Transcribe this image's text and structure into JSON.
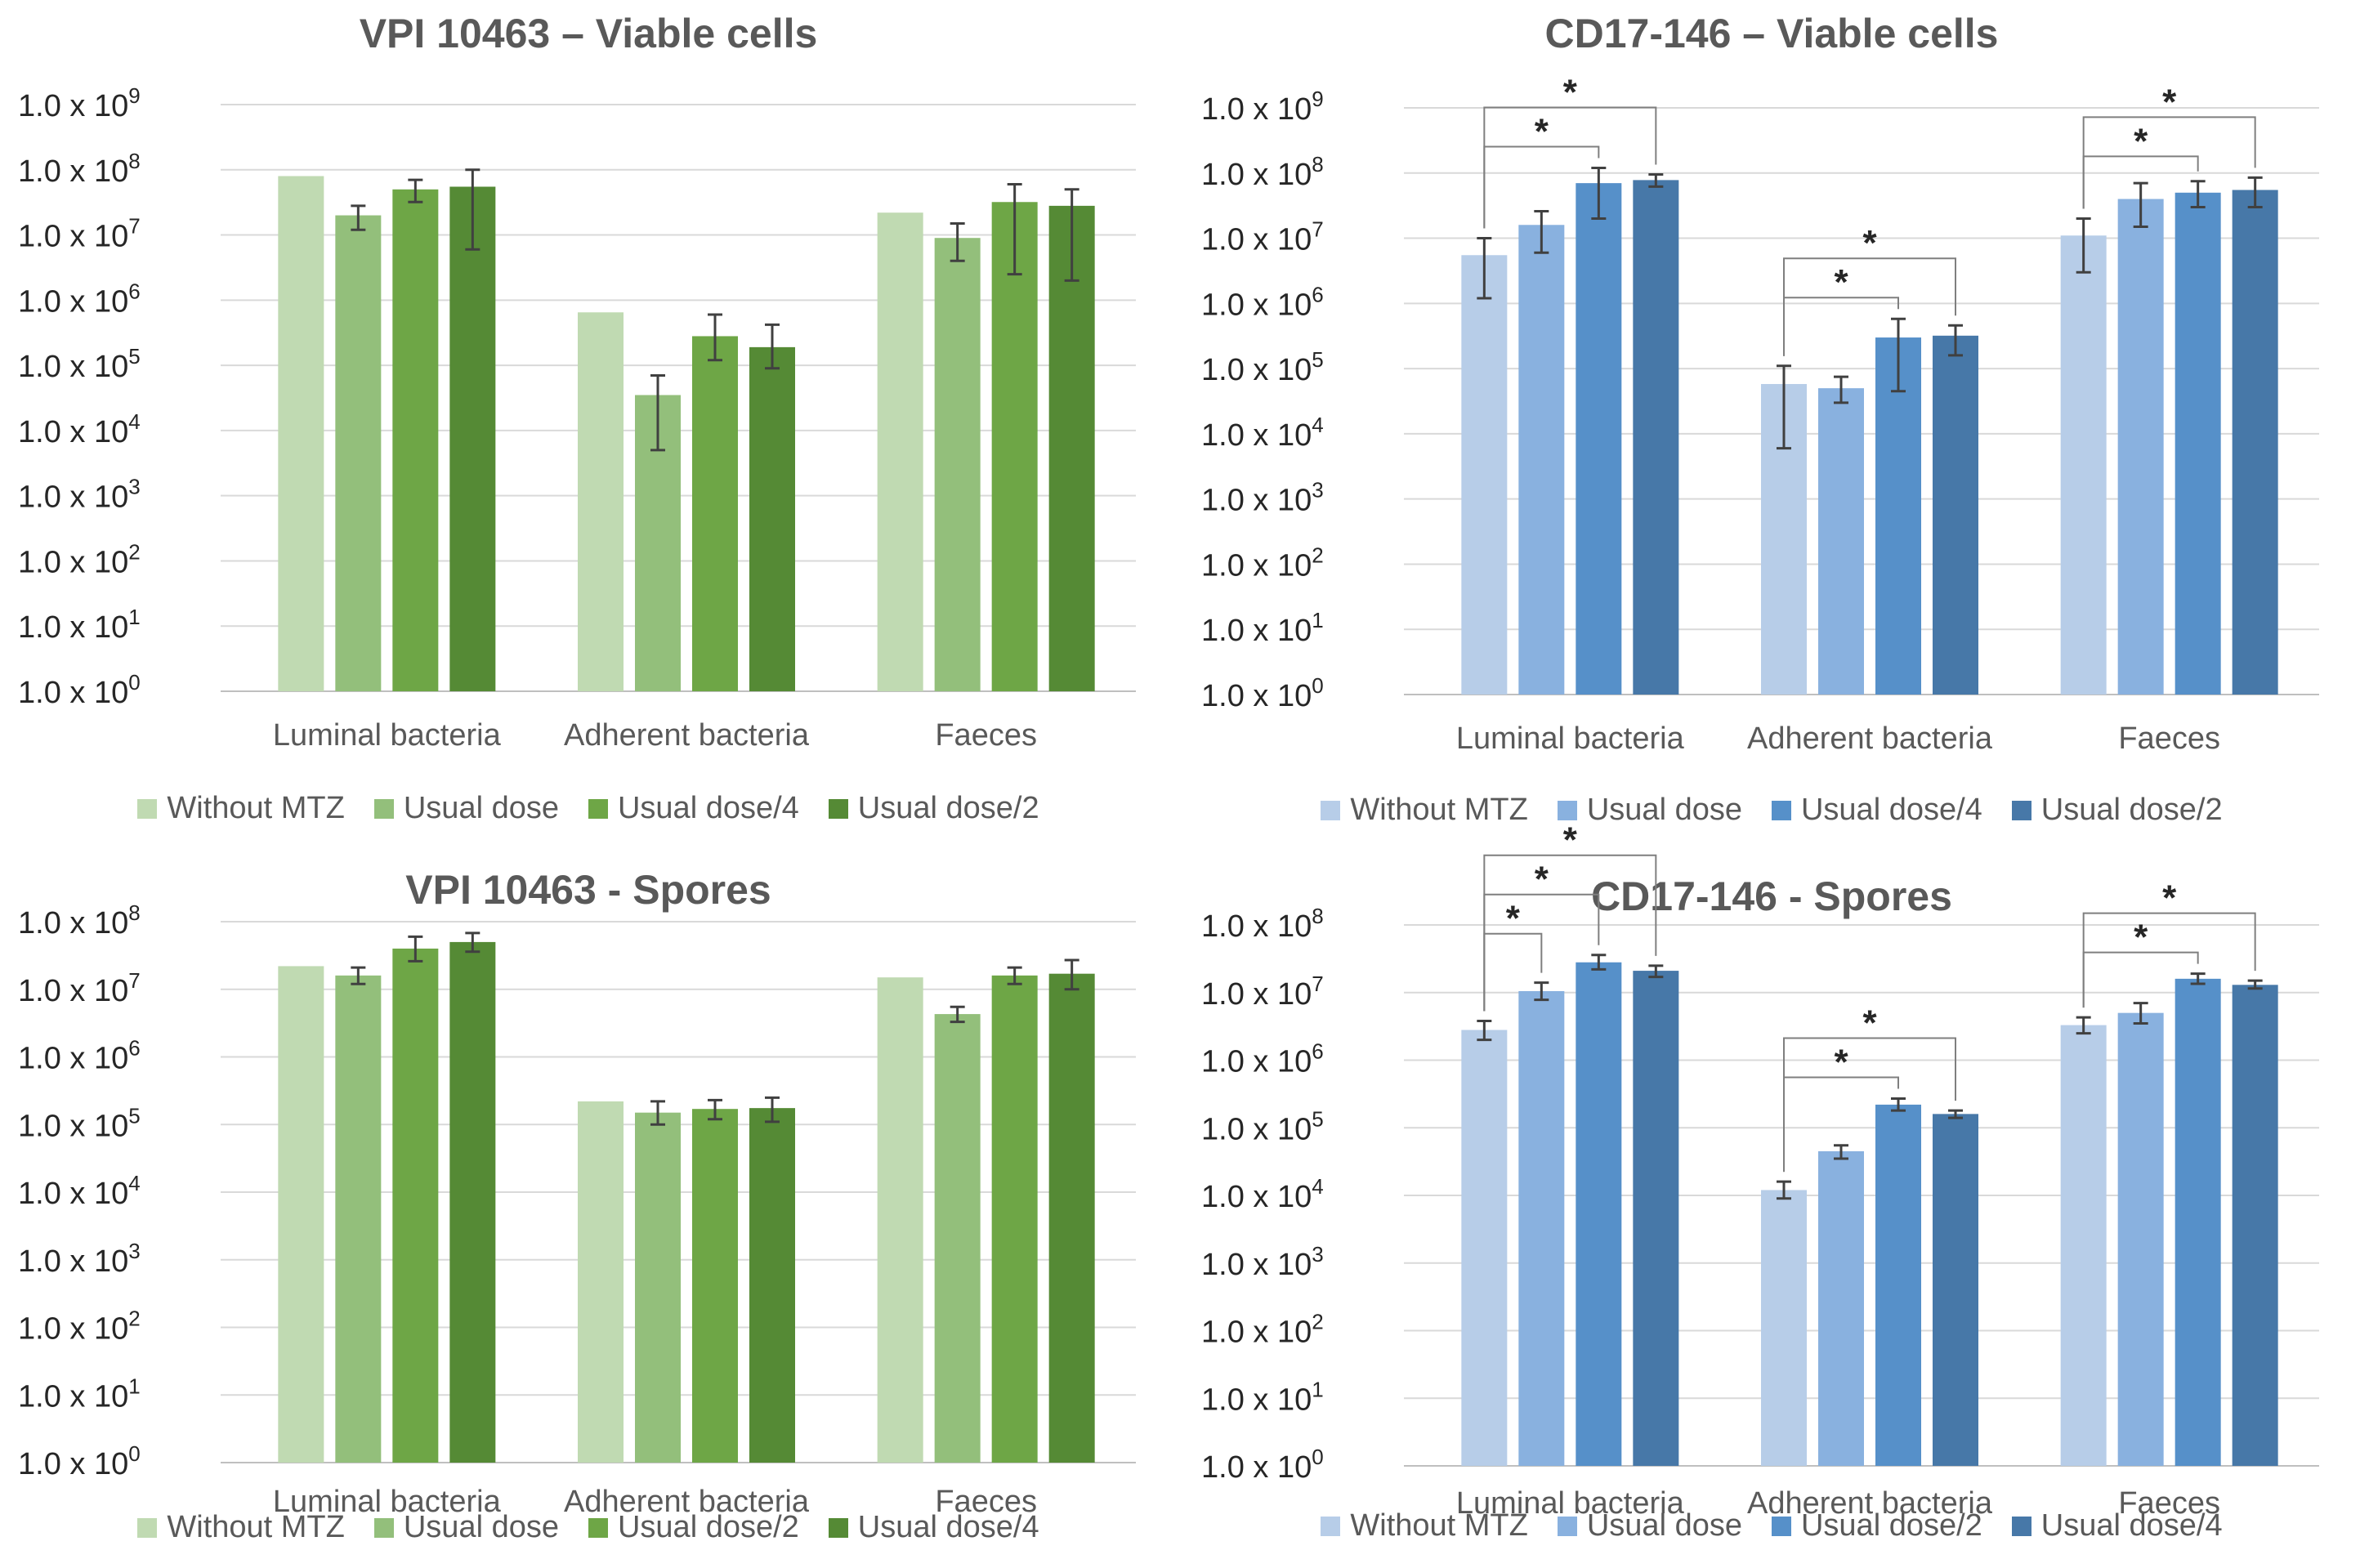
{
  "chart_data": [
    {
      "type": "bar",
      "title": "VPI 10463 – Viable cells",
      "xlabel": "",
      "ylabel": "",
      "yscale": "log",
      "ylim": [
        1,
        1000000000
      ],
      "yticks": [
        "1.0 x 10^0",
        "1.0 x 10^1",
        "1.0 x 10^2",
        "1.0 x 10^3",
        "1.0 x 10^4",
        "1.0 x 10^5",
        "1.0 x 10^6",
        "1.0 x 10^7",
        "1.0 x 10^8",
        "1.0 x 10^9"
      ],
      "grid": true,
      "legend_position": "bottom",
      "categories": [
        "Luminal bacteria",
        "Adherent bacteria",
        "Faeces"
      ],
      "series": [
        {
          "name": "Without MTZ",
          "color": "#c0dab2",
          "values": [
            80000000,
            650000,
            22000000
          ],
          "err_low": [
            null,
            null,
            null
          ],
          "err_high": [
            null,
            null,
            null
          ]
        },
        {
          "name": "Usual dose",
          "color": "#93bf7b",
          "values": [
            20000000,
            35000,
            9000000
          ],
          "err_low": [
            12000000,
            5000,
            4000000
          ],
          "err_high": [
            28000000,
            70000,
            15000000
          ]
        },
        {
          "name": "Usual dose/4",
          "color": "#6ea646",
          "values": [
            50000000,
            280000,
            32000000
          ],
          "err_low": [
            32000000,
            120000,
            2500000
          ],
          "err_high": [
            70000000,
            600000,
            60000000
          ]
        },
        {
          "name": "Usual dose/2",
          "color": "#558a35",
          "values": [
            55000000,
            190000,
            28000000
          ],
          "err_low": [
            6000000,
            90000,
            2000000
          ],
          "err_high": [
            100000000,
            420000,
            50000000
          ]
        }
      ],
      "significance": []
    },
    {
      "type": "bar",
      "title": "CD17-146 – Viable cells",
      "xlabel": "",
      "ylabel": "",
      "yscale": "log",
      "ylim": [
        1,
        1000000000
      ],
      "yticks": [
        "1.0 x 10^0",
        "1.0 x 10^1",
        "1.0 x 10^2",
        "1.0 x 10^3",
        "1.0 x 10^4",
        "1.0 x 10^5",
        "1.0 x 10^6",
        "1.0 x 10^7",
        "1.0 x 10^8",
        "1.0 x 10^9"
      ],
      "grid": true,
      "legend_position": "bottom",
      "categories": [
        "Luminal bacteria",
        "Adherent bacteria",
        "Faeces"
      ],
      "series": [
        {
          "name": "Without MTZ",
          "color": "#b7cde8",
          "values": [
            5500000,
            58000,
            11000000
          ],
          "err_low": [
            1200000,
            6000,
            3000000
          ],
          "err_high": [
            10000000,
            110000,
            20000000
          ]
        },
        {
          "name": "Usual dose",
          "color": "#89b1df",
          "values": [
            16000000,
            50000,
            40000000
          ],
          "err_low": [
            6000000,
            30000,
            15000000
          ],
          "err_high": [
            26000000,
            75000,
            70000000
          ]
        },
        {
          "name": "Usual dose/4",
          "color": "#5690c9",
          "values": [
            70000000,
            300000,
            50000000
          ],
          "err_low": [
            20000000,
            45000,
            30000000
          ],
          "err_high": [
            120000000,
            580000,
            75000000
          ]
        },
        {
          "name": "Usual dose/2",
          "color": "#4778a8",
          "values": [
            78000000,
            320000,
            55000000
          ],
          "err_low": [
            62000000,
            160000,
            30000000
          ],
          "err_high": [
            95000000,
            460000,
            85000000
          ]
        }
      ],
      "significance": [
        {
          "category": 0,
          "from": 0,
          "to": 2,
          "label": "*"
        },
        {
          "category": 0,
          "from": 0,
          "to": 3,
          "label": "*"
        },
        {
          "category": 1,
          "from": 0,
          "to": 2,
          "label": "*"
        },
        {
          "category": 1,
          "from": 0,
          "to": 3,
          "label": "*"
        },
        {
          "category": 2,
          "from": 0,
          "to": 2,
          "label": "*"
        },
        {
          "category": 2,
          "from": 0,
          "to": 3,
          "label": "*"
        }
      ]
    },
    {
      "type": "bar",
      "title": "VPI 10463 - Spores",
      "xlabel": "",
      "ylabel": "",
      "yscale": "log",
      "ylim": [
        1,
        100000000
      ],
      "yticks": [
        "1.0 x 10^0",
        "1.0 x 10^1",
        "1.0 x 10^2",
        "1.0 x 10^3",
        "1.0 x 10^4",
        "1.0 x 10^5",
        "1.0 x 10^6",
        "1.0 x 10^7",
        "1.0 x 10^8"
      ],
      "grid": true,
      "legend_position": "bottom",
      "categories": [
        "Luminal bacteria",
        "Adherent bacteria",
        "Faeces"
      ],
      "series": [
        {
          "name": "Without MTZ",
          "color": "#c0dab2",
          "values": [
            22000000,
            220000,
            15000000
          ],
          "err_low": [
            null,
            null,
            null
          ],
          "err_high": [
            null,
            null,
            null
          ]
        },
        {
          "name": "Usual dose",
          "color": "#93bf7b",
          "values": [
            16000000,
            150000,
            4300000
          ],
          "err_low": [
            12000000,
            100000,
            3300000
          ],
          "err_high": [
            21000000,
            220000,
            5500000
          ]
        },
        {
          "name": "Usual dose/2",
          "color": "#6ea646",
          "values": [
            40000000,
            170000,
            16000000
          ],
          "err_low": [
            26000000,
            120000,
            12000000
          ],
          "err_high": [
            60000000,
            230000,
            21000000
          ]
        },
        {
          "name": "Usual dose/4",
          "color": "#558a35",
          "values": [
            50000000,
            175000,
            17000000
          ],
          "err_low": [
            36000000,
            110000,
            10000000
          ],
          "err_high": [
            68000000,
            250000,
            27000000
          ]
        }
      ],
      "significance": []
    },
    {
      "type": "bar",
      "title": "CD17-146 - Spores",
      "xlabel": "",
      "ylabel": "",
      "yscale": "log",
      "ylim": [
        1,
        100000000
      ],
      "yticks": [
        "1.0 x 10^0",
        "1.0 x 10^1",
        "1.0 x 10^2",
        "1.0 x 10^3",
        "1.0 x 10^4",
        "1.0 x 10^5",
        "1.0 x 10^6",
        "1.0 x 10^7",
        "1.0 x 10^8"
      ],
      "grid": true,
      "legend_position": "bottom",
      "categories": [
        "Luminal bacteria",
        "Adherent bacteria",
        "Faeces"
      ],
      "series": [
        {
          "name": "Without MTZ",
          "color": "#b7cde8",
          "values": [
            2800000,
            12000,
            3300000
          ],
          "err_low": [
            2000000,
            9000,
            2500000
          ],
          "err_high": [
            3800000,
            16000,
            4300000
          ]
        },
        {
          "name": "Usual dose",
          "color": "#89b1df",
          "values": [
            10500000,
            45000,
            5000000
          ],
          "err_low": [
            7800000,
            35000,
            3500000
          ],
          "err_high": [
            14000000,
            55000,
            7000000
          ]
        },
        {
          "name": "Usual dose/2",
          "color": "#5690c9",
          "values": [
            28000000,
            220000,
            16000000
          ],
          "err_low": [
            22000000,
            180000,
            13500000
          ],
          "err_high": [
            36000000,
            270000,
            19000000
          ]
        },
        {
          "name": "Usual dose/4",
          "color": "#4778a8",
          "values": [
            21000000,
            160000,
            13000000
          ],
          "err_low": [
            17000000,
            140000,
            11500000
          ],
          "err_high": [
            25000000,
            180000,
            15000000
          ]
        }
      ],
      "significance": [
        {
          "category": 0,
          "from": 0,
          "to": 1,
          "label": "*"
        },
        {
          "category": 0,
          "from": 0,
          "to": 2,
          "label": "*"
        },
        {
          "category": 0,
          "from": 0,
          "to": 3,
          "label": "*"
        },
        {
          "category": 1,
          "from": 0,
          "to": 2,
          "label": "*"
        },
        {
          "category": 1,
          "from": 0,
          "to": 3,
          "label": "*"
        },
        {
          "category": 2,
          "from": 0,
          "to": 2,
          "label": "*"
        },
        {
          "category": 2,
          "from": 0,
          "to": 3,
          "label": "*"
        }
      ]
    }
  ]
}
